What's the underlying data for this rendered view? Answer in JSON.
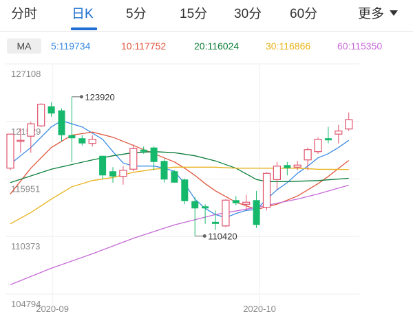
{
  "tabs": [
    {
      "label": "分时",
      "active": false
    },
    {
      "label": "日K",
      "active": true
    },
    {
      "label": "5分",
      "active": false
    },
    {
      "label": "15分",
      "active": false
    },
    {
      "label": "30分",
      "active": false
    },
    {
      "label": "60分",
      "active": false
    }
  ],
  "more_label": "更多",
  "ma": {
    "badge": "MA",
    "items": [
      {
        "label": "5:119734",
        "color": "#3a8be6"
      },
      {
        "label": "10:117752",
        "color": "#e0553b"
      },
      {
        "label": "20:116024",
        "color": "#0b7d3a"
      },
      {
        "label": "30:116866",
        "color": "#e8b21c"
      },
      {
        "label": "60:115350",
        "color": "#c66ad6"
      }
    ]
  },
  "colors": {
    "up": "#e0506a",
    "down": "#16b86c",
    "grid": "#eeeeee",
    "axis_text": "#888888"
  },
  "chart_data": {
    "type": "candlestick",
    "ylim": [
      104794,
      127108
    ],
    "ytick_labels": [
      "127108",
      "121529",
      "115951",
      "110373",
      "104794"
    ],
    "ytick_values": [
      127108,
      121529,
      115951,
      110373,
      104794
    ],
    "xtick_labels": [
      "2020-09",
      "2020-10"
    ],
    "xtick_index": [
      4.1,
      24.3
    ],
    "annotations": [
      {
        "label": "123920",
        "value": 123920,
        "index": 6
      },
      {
        "label": "110420",
        "value": 110420,
        "index": 18
      }
    ],
    "candles": [
      {
        "o": 117000,
        "c": 120300,
        "h": 120300,
        "l": 116800
      },
      {
        "o": 119600,
        "c": 119700,
        "h": 120900,
        "l": 118500
      },
      {
        "o": 120100,
        "c": 121300,
        "h": 121500,
        "l": 118500
      },
      {
        "o": 121100,
        "c": 123200,
        "h": 123300,
        "l": 121000
      },
      {
        "o": 123000,
        "c": 122300,
        "h": 123400,
        "l": 122000
      },
      {
        "o": 122600,
        "c": 120200,
        "h": 122800,
        "l": 119600
      },
      {
        "o": 120200,
        "c": 119900,
        "h": 123920,
        "l": 117600
      },
      {
        "o": 119900,
        "c": 119400,
        "h": 120200,
        "l": 119200
      },
      {
        "o": 119400,
        "c": 119800,
        "h": 120200,
        "l": 119100
      },
      {
        "o": 118200,
        "c": 116300,
        "h": 118200,
        "l": 115900
      },
      {
        "o": 116700,
        "c": 116200,
        "h": 117100,
        "l": 115600
      },
      {
        "o": 116200,
        "c": 116800,
        "h": 117200,
        "l": 115400
      },
      {
        "o": 116900,
        "c": 118900,
        "h": 119300,
        "l": 116700
      },
      {
        "o": 118800,
        "c": 118600,
        "h": 119100,
        "l": 118400
      },
      {
        "o": 119000,
        "c": 117600,
        "h": 119100,
        "l": 116800
      },
      {
        "o": 117700,
        "c": 115900,
        "h": 117900,
        "l": 115600
      },
      {
        "o": 116700,
        "c": 115600,
        "h": 116800,
        "l": 115600
      },
      {
        "o": 115900,
        "c": 113800,
        "h": 116000,
        "l": 113500
      },
      {
        "o": 113800,
        "c": 113100,
        "h": 114200,
        "l": 110420
      },
      {
        "o": 113300,
        "c": 113100,
        "h": 113500,
        "l": 111600
      },
      {
        "o": 111800,
        "c": 111600,
        "h": 112900,
        "l": 111000
      },
      {
        "o": 111400,
        "c": 113900,
        "h": 114000,
        "l": 111300
      },
      {
        "o": 113900,
        "c": 113600,
        "h": 114300,
        "l": 113400
      },
      {
        "o": 113500,
        "c": 113700,
        "h": 114400,
        "l": 112900
      },
      {
        "o": 113900,
        "c": 111500,
        "h": 114800,
        "l": 111200
      },
      {
        "o": 113200,
        "c": 116500,
        "h": 116600,
        "l": 112900
      },
      {
        "o": 115900,
        "c": 117200,
        "h": 117600,
        "l": 114900
      },
      {
        "o": 117300,
        "c": 117000,
        "h": 117600,
        "l": 116300
      },
      {
        "o": 117100,
        "c": 117300,
        "h": 117700,
        "l": 116800
      },
      {
        "o": 117800,
        "c": 118800,
        "h": 119000,
        "l": 116800
      },
      {
        "o": 118600,
        "c": 119800,
        "h": 120000,
        "l": 118400
      },
      {
        "o": 119900,
        "c": 119700,
        "h": 121000,
        "l": 119400
      },
      {
        "o": 120300,
        "c": 120600,
        "h": 121200,
        "l": 119400
      },
      {
        "o": 120800,
        "c": 121700,
        "h": 122400,
        "l": 120600
      }
    ],
    "series": [
      {
        "name": "5",
        "color": "#3a8be6",
        "values": [
          [
            0,
            117400
          ],
          [
            2,
            119000
          ],
          [
            4,
            121000
          ],
          [
            5,
            121600
          ],
          [
            7,
            121000
          ],
          [
            9,
            119800
          ],
          [
            10,
            118600
          ],
          [
            11,
            117500
          ],
          [
            12,
            117200
          ],
          [
            13,
            117200
          ],
          [
            14,
            117200
          ],
          [
            15,
            117000
          ],
          [
            16,
            116700
          ],
          [
            17,
            115500
          ],
          [
            18,
            114000
          ],
          [
            19,
            113100
          ],
          [
            20,
            112500
          ],
          [
            21,
            112200
          ],
          [
            22,
            112600
          ],
          [
            23,
            112900
          ],
          [
            24,
            113000
          ],
          [
            25,
            114000
          ],
          [
            26,
            114900
          ],
          [
            27,
            115600
          ],
          [
            28,
            116500
          ],
          [
            29,
            117200
          ],
          [
            30,
            118000
          ],
          [
            31,
            118400
          ],
          [
            32,
            119000
          ],
          [
            33,
            119700
          ]
        ]
      },
      {
        "name": "10",
        "color": "#e0553b",
        "values": [
          [
            0,
            114500
          ],
          [
            2,
            117000
          ],
          [
            4,
            119000
          ],
          [
            6,
            120200
          ],
          [
            8,
            120500
          ],
          [
            10,
            120000
          ],
          [
            12,
            119200
          ],
          [
            14,
            118400
          ],
          [
            16,
            117600
          ],
          [
            17,
            117000
          ],
          [
            18,
            116300
          ],
          [
            19,
            115500
          ],
          [
            20,
            114800
          ],
          [
            22,
            113700
          ],
          [
            24,
            113000
          ],
          [
            26,
            113500
          ],
          [
            28,
            114300
          ],
          [
            30,
            115500
          ],
          [
            31,
            116200
          ],
          [
            33,
            117750
          ]
        ]
      },
      {
        "name": "20",
        "color": "#0b7d3a",
        "values": [
          [
            0,
            115600
          ],
          [
            4,
            116900
          ],
          [
            8,
            117800
          ],
          [
            10,
            118200
          ],
          [
            12,
            118500
          ],
          [
            14,
            118600
          ],
          [
            16,
            118500
          ],
          [
            18,
            118200
          ],
          [
            20,
            117700
          ],
          [
            22,
            117000
          ],
          [
            24,
            115900
          ],
          [
            25,
            115700
          ],
          [
            27,
            115700
          ],
          [
            30,
            115800
          ],
          [
            33,
            116020
          ]
        ]
      },
      {
        "name": "30",
        "color": "#e8b21c",
        "values": [
          [
            0,
            111600
          ],
          [
            2,
            112700
          ],
          [
            4,
            114000
          ],
          [
            6,
            115200
          ],
          [
            8,
            115800
          ],
          [
            10,
            116100
          ],
          [
            12,
            116600
          ],
          [
            14,
            116900
          ],
          [
            16,
            117100
          ],
          [
            18,
            117100
          ],
          [
            20,
            117100
          ],
          [
            22,
            117000
          ],
          [
            24,
            117000
          ],
          [
            26,
            117000
          ],
          [
            28,
            117000
          ],
          [
            30,
            116900
          ],
          [
            33,
            116870
          ]
        ]
      },
      {
        "name": "60",
        "color": "#c66ad6",
        "values": [
          [
            0,
            105700
          ],
          [
            4,
            107300
          ],
          [
            8,
            108700
          ],
          [
            12,
            110200
          ],
          [
            16,
            111500
          ],
          [
            20,
            112500
          ],
          [
            24,
            113200
          ],
          [
            28,
            114000
          ],
          [
            30,
            114500
          ],
          [
            33,
            115350
          ]
        ]
      }
    ]
  }
}
